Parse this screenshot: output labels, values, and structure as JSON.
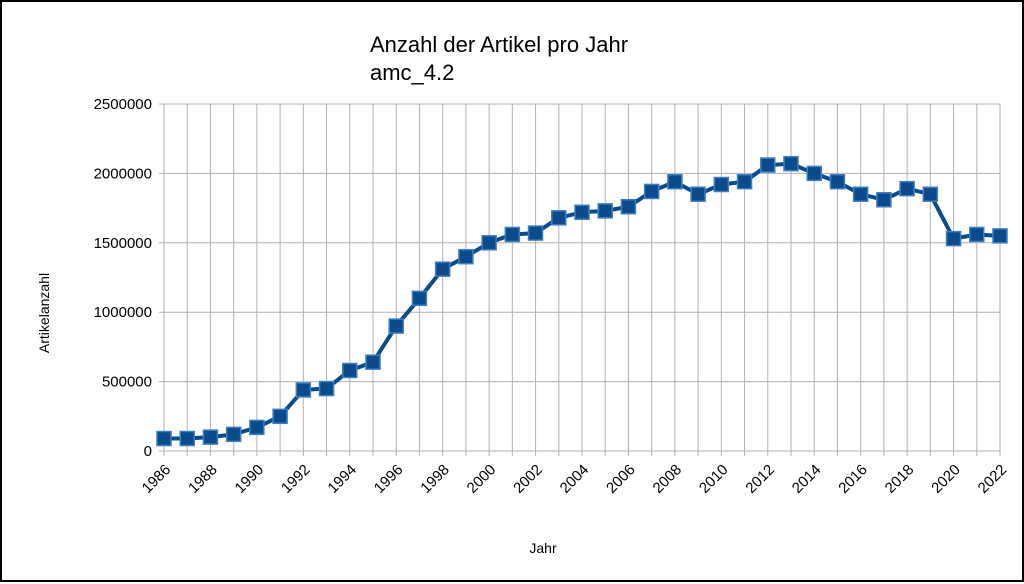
{
  "chart_data": {
    "type": "line",
    "title": "Anzahl der Artikel pro Jahr",
    "subtitle": "amc_4.2",
    "xlabel": "Jahr",
    "ylabel": "Artikelanzahl",
    "ylim": [
      0,
      2500000
    ],
    "yticks": [
      "0",
      "500000",
      "1000000",
      "1500000",
      "2000000",
      "2500000"
    ],
    "xticks": [
      "1986",
      "1988",
      "1990",
      "1992",
      "1994",
      "1996",
      "1998",
      "2000",
      "2002",
      "2004",
      "2006",
      "2008",
      "2010",
      "2012",
      "2014",
      "2016",
      "2018",
      "2020",
      "2022"
    ],
    "grid": true,
    "legend": "none",
    "series_color": "#0b4a8b",
    "x": [
      1986,
      1987,
      1988,
      1989,
      1990,
      1991,
      1992,
      1993,
      1994,
      1995,
      1996,
      1997,
      1998,
      1999,
      2000,
      2001,
      2002,
      2003,
      2004,
      2005,
      2006,
      2007,
      2008,
      2009,
      2010,
      2011,
      2012,
      2013,
      2014,
      2015,
      2016,
      2017,
      2018,
      2019,
      2020,
      2021,
      2022
    ],
    "values": [
      90000,
      90000,
      100000,
      120000,
      170000,
      250000,
      440000,
      450000,
      580000,
      640000,
      900000,
      1100000,
      1310000,
      1400000,
      1500000,
      1560000,
      1570000,
      1680000,
      1720000,
      1730000,
      1760000,
      1870000,
      1940000,
      1850000,
      1920000,
      1940000,
      2060000,
      2070000,
      2000000,
      1940000,
      1850000,
      1810000,
      1890000,
      1850000,
      1530000,
      1560000,
      1550000
    ]
  }
}
